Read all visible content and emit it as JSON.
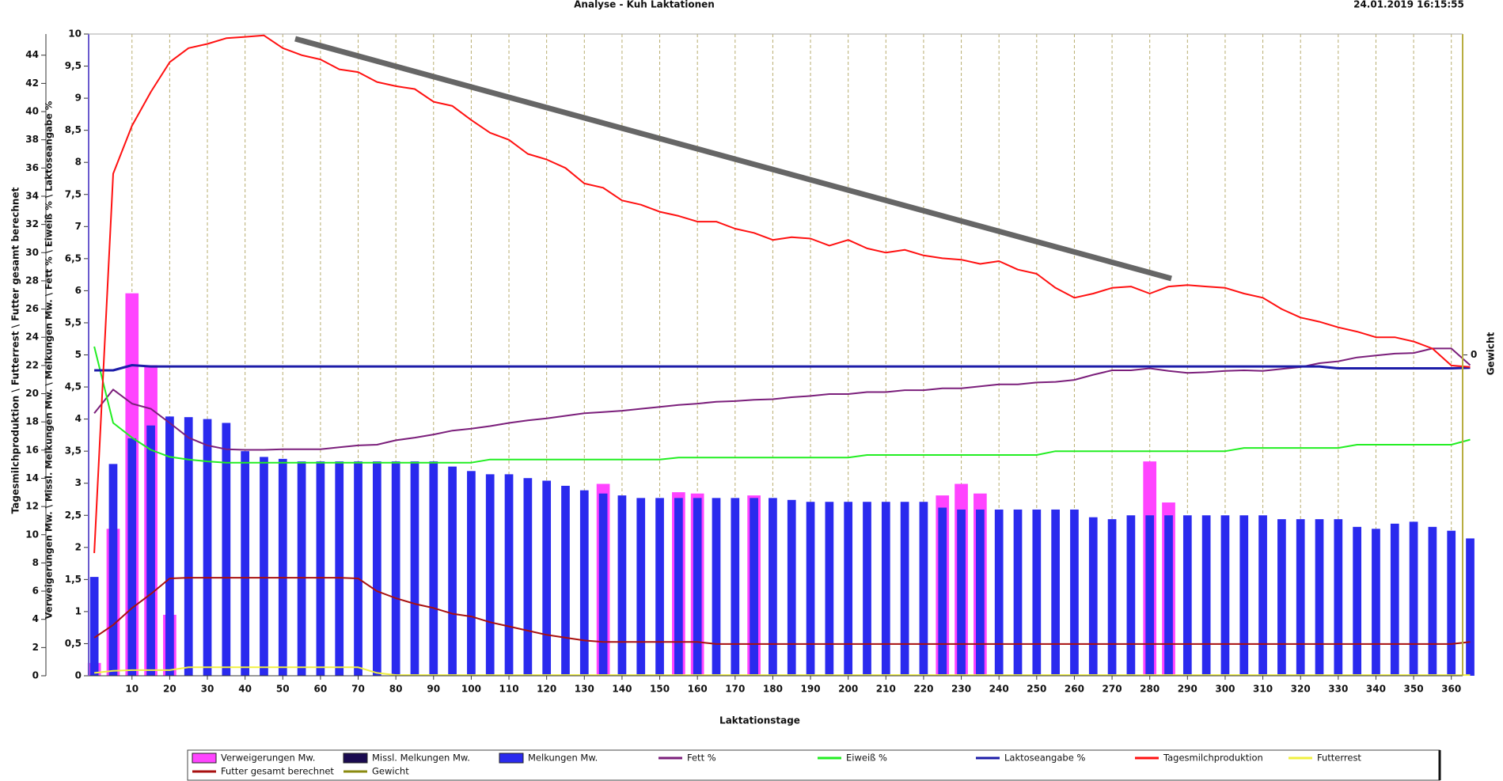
{
  "chart_data": {
    "type": "combo",
    "title": "Analyse - Kuh Laktationen",
    "timestamp": "24.01.2019 16:15:55",
    "xlabel": "Laktationstage",
    "ylabel": "Tagesmilchproduktion \\ Futterrest \\ Futter gesamt berechnet",
    "y2label": "Verweigerungen Mw. \\ Missl. Melkungen Mw. \\ Melkungen Mw. \\ Fett % \\ Eiweiß % \\ Laktoseangabe %",
    "y3label": "Gewicht",
    "xlim": [
      -1.5,
      363
    ],
    "xticks": [
      10,
      20,
      30,
      40,
      50,
      60,
      70,
      80,
      90,
      100,
      110,
      120,
      130,
      140,
      150,
      160,
      170,
      180,
      190,
      200,
      210,
      220,
      230,
      240,
      250,
      260,
      270,
      280,
      290,
      300,
      310,
      320,
      330,
      340,
      350,
      360
    ],
    "ylim": [
      0,
      45.5
    ],
    "yticks": [
      0,
      2,
      4,
      6,
      8,
      10,
      12,
      14,
      16,
      18,
      20,
      22,
      24,
      26,
      28,
      30,
      32,
      34,
      36,
      38,
      40,
      42,
      44
    ],
    "y2lim": [
      0,
      10
    ],
    "y2ticks": [
      0,
      {
        "value": 0.5,
        "label": "0,5"
      },
      1,
      {
        "value": 1.5,
        "label": "1,5"
      },
      2,
      {
        "value": 2.5,
        "label": "2,5"
      },
      3,
      {
        "value": 3.5,
        "label": "3,5"
      },
      4,
      {
        "value": 4.5,
        "label": "4,5"
      },
      5,
      {
        "value": 5.5,
        "label": "5,5"
      },
      6,
      {
        "value": 6.5,
        "label": "6,5"
      },
      7,
      {
        "value": 7.5,
        "label": "7,5"
      },
      8,
      {
        "value": 8.5,
        "label": "8,5"
      },
      9,
      {
        "value": 9.5,
        "label": "9,5"
      },
      10
    ],
    "y3lim": [
      -1,
      1
    ],
    "y3ticks": [
      0
    ],
    "grid": true,
    "x": [
      0,
      5,
      10,
      15,
      20,
      25,
      30,
      35,
      40,
      45,
      50,
      55,
      60,
      65,
      70,
      75,
      80,
      85,
      90,
      95,
      100,
      105,
      110,
      115,
      120,
      125,
      130,
      135,
      140,
      145,
      150,
      155,
      160,
      165,
      170,
      175,
      180,
      185,
      190,
      195,
      200,
      205,
      210,
      215,
      220,
      225,
      230,
      235,
      240,
      245,
      250,
      255,
      260,
      265,
      270,
      275,
      280,
      285,
      290,
      295,
      300,
      305,
      310,
      315,
      320,
      325,
      330,
      335,
      340,
      345,
      350,
      355,
      360,
      365
    ],
    "series": [
      {
        "name": "Verweigerungen Mw.",
        "kind": "bar",
        "axis": "y2",
        "color": "#ff44ff",
        "values": [
          0.2,
          2.29,
          5.96,
          4.84,
          0.95,
          0,
          0,
          0,
          0,
          0,
          0,
          0,
          0,
          0,
          0,
          0,
          0,
          0,
          0,
          0,
          0,
          0,
          0,
          0,
          0,
          0,
          0,
          2.99,
          0,
          0,
          0,
          2.86,
          2.84,
          0,
          0,
          2.81,
          0,
          0,
          0,
          0,
          0,
          0,
          0,
          0,
          0,
          2.81,
          2.99,
          2.84,
          0,
          0,
          0,
          0,
          0,
          0,
          0,
          0,
          3.34,
          2.7,
          0,
          0,
          0,
          0,
          0,
          0,
          0,
          0,
          0,
          0,
          0,
          0,
          0,
          0,
          0,
          0
        ]
      },
      {
        "name": "Missl. Melkungen Mw.",
        "kind": "bar",
        "axis": "y2",
        "color": "#1a0a50",
        "values": [
          0,
          0,
          0,
          0,
          0,
          0,
          0,
          0,
          0,
          0,
          0,
          0,
          0,
          0,
          0,
          0,
          0,
          0,
          0,
          0,
          0,
          0,
          0,
          0,
          0,
          0,
          0,
          0,
          0,
          0,
          0,
          0,
          0,
          0,
          0,
          0,
          0,
          0,
          0,
          0,
          0,
          0,
          0,
          0,
          0,
          0,
          0,
          0,
          0,
          0,
          0,
          0,
          0,
          0,
          0,
          0,
          0,
          0,
          0,
          0,
          0,
          0,
          0,
          0,
          0,
          0,
          0,
          0,
          0,
          0,
          0,
          0,
          0,
          0
        ]
      },
      {
        "name": "Melkungen Mw.",
        "kind": "bar",
        "axis": "y2",
        "color": "#2a2aee",
        "values": [
          1.54,
          3.3,
          3.7,
          3.9,
          4.04,
          4.03,
          4.0,
          3.94,
          3.5,
          3.41,
          3.38,
          3.34,
          3.34,
          3.34,
          3.34,
          3.34,
          3.34,
          3.34,
          3.34,
          3.26,
          3.19,
          3.14,
          3.14,
          3.08,
          3.04,
          2.96,
          2.89,
          2.84,
          2.81,
          2.77,
          2.77,
          2.77,
          2.77,
          2.77,
          2.77,
          2.77,
          2.77,
          2.74,
          2.71,
          2.71,
          2.71,
          2.71,
          2.71,
          2.71,
          2.71,
          2.62,
          2.59,
          2.59,
          2.59,
          2.59,
          2.59,
          2.59,
          2.59,
          2.47,
          2.44,
          2.5,
          2.5,
          2.5,
          2.5,
          2.5,
          2.5,
          2.5,
          2.5,
          2.44,
          2.44,
          2.44,
          2.44,
          2.32,
          2.29,
          2.37,
          2.4,
          2.32,
          2.26,
          2.14
        ]
      },
      {
        "name": "Fett %",
        "kind": "line",
        "axis": "y2",
        "color": "#7b1f7b",
        "values": [
          4.09,
          4.46,
          4.24,
          4.16,
          3.94,
          3.71,
          3.59,
          3.53,
          3.52,
          3.52,
          3.53,
          3.53,
          3.53,
          3.56,
          3.59,
          3.6,
          3.67,
          3.71,
          3.76,
          3.82,
          3.85,
          3.89,
          3.94,
          3.98,
          4.01,
          4.05,
          4.09,
          4.11,
          4.13,
          4.16,
          4.19,
          4.22,
          4.24,
          4.27,
          4.28,
          4.3,
          4.31,
          4.34,
          4.36,
          4.39,
          4.39,
          4.42,
          4.42,
          4.45,
          4.45,
          4.48,
          4.48,
          4.51,
          4.54,
          4.54,
          4.57,
          4.58,
          4.61,
          4.69,
          4.76,
          4.76,
          4.79,
          4.75,
          4.72,
          4.73,
          4.75,
          4.76,
          4.75,
          4.78,
          4.81,
          4.87,
          4.9,
          4.96,
          4.99,
          5.02,
          5.03,
          5.1,
          5.1,
          4.84
        ]
      },
      {
        "name": "Eiweiß %",
        "kind": "line",
        "axis": "y2",
        "color": "#22ee22",
        "values": [
          5.13,
          3.94,
          3.71,
          3.52,
          3.41,
          3.37,
          3.34,
          3.32,
          3.32,
          3.32,
          3.32,
          3.32,
          3.32,
          3.32,
          3.32,
          3.32,
          3.32,
          3.32,
          3.32,
          3.32,
          3.32,
          3.37,
          3.37,
          3.37,
          3.37,
          3.37,
          3.37,
          3.37,
          3.37,
          3.37,
          3.37,
          3.4,
          3.4,
          3.4,
          3.4,
          3.4,
          3.4,
          3.4,
          3.4,
          3.4,
          3.4,
          3.44,
          3.44,
          3.44,
          3.44,
          3.44,
          3.44,
          3.44,
          3.44,
          3.44,
          3.44,
          3.5,
          3.5,
          3.5,
          3.5,
          3.5,
          3.5,
          3.5,
          3.5,
          3.5,
          3.5,
          3.55,
          3.55,
          3.55,
          3.55,
          3.55,
          3.55,
          3.6,
          3.6,
          3.6,
          3.6,
          3.6,
          3.6,
          3.68
        ]
      },
      {
        "name": "Laktoseangabe %",
        "kind": "line",
        "axis": "y2",
        "color": "#1c1ca8",
        "values": [
          4.76,
          4.76,
          4.84,
          4.82,
          4.82,
          4.82,
          4.82,
          4.82,
          4.82,
          4.82,
          4.82,
          4.82,
          4.82,
          4.82,
          4.82,
          4.82,
          4.82,
          4.82,
          4.82,
          4.82,
          4.82,
          4.82,
          4.82,
          4.82,
          4.82,
          4.82,
          4.82,
          4.82,
          4.82,
          4.82,
          4.82,
          4.82,
          4.82,
          4.82,
          4.82,
          4.82,
          4.82,
          4.82,
          4.82,
          4.82,
          4.82,
          4.82,
          4.82,
          4.82,
          4.82,
          4.82,
          4.82,
          4.82,
          4.82,
          4.82,
          4.82,
          4.82,
          4.82,
          4.82,
          4.82,
          4.82,
          4.82,
          4.82,
          4.82,
          4.82,
          4.82,
          4.82,
          4.82,
          4.82,
          4.82,
          4.82,
          4.79,
          4.79,
          4.79,
          4.79,
          4.79,
          4.79,
          4.79,
          4.8
        ]
      },
      {
        "name": "Tagesmilchproduktion",
        "kind": "line",
        "axis": "y",
        "color": "#ff1010",
        "values": [
          8.7,
          35.6,
          39,
          41.4,
          43.5,
          44.5,
          44.8,
          45.2,
          45.3,
          45.4,
          44.5,
          44,
          43.7,
          43,
          42.8,
          42.1,
          41.8,
          41.6,
          40.7,
          40.4,
          39.4,
          38.5,
          38,
          37,
          36.6,
          36,
          34.9,
          34.6,
          33.7,
          33.4,
          32.9,
          32.6,
          32.2,
          32.2,
          31.7,
          31.4,
          30.9,
          31.1,
          31,
          30.5,
          30.9,
          30.3,
          30,
          30.2,
          29.8,
          29.6,
          29.5,
          29.2,
          29.4,
          28.8,
          28.5,
          27.5,
          26.8,
          27.1,
          27.5,
          27.6,
          27.1,
          27.6,
          27.7,
          27.6,
          27.5,
          27.1,
          26.8,
          26,
          25.4,
          25.1,
          24.7,
          24.4,
          24,
          24,
          23.7,
          23.2,
          22,
          21.9
        ]
      },
      {
        "name": "Futterrest",
        "kind": "line",
        "axis": "y",
        "color": "#f0f040",
        "values": [
          0.2,
          0.35,
          0.4,
          0.4,
          0.4,
          0.6,
          0.6,
          0.6,
          0.6,
          0.6,
          0.6,
          0.6,
          0.6,
          0.6,
          0.6,
          0.2,
          0.05,
          0.05,
          0.05,
          0.05,
          0.05,
          0.05,
          0.05,
          0.05,
          0.05,
          0.05,
          0.05,
          0.05,
          0.05,
          0.05,
          0.05,
          0.05,
          0.05,
          0.05,
          0.05,
          0.05,
          0.05,
          0.05,
          0.05,
          0.05,
          0.05,
          0.05,
          0.05,
          0.05,
          0.05,
          0.05,
          0.05,
          0.05,
          0.05,
          0.05,
          0.05,
          0.05,
          0.05,
          0.05,
          0.05,
          0.05,
          0.05,
          0.05,
          0.05,
          0.05,
          0.05,
          0.05,
          0.05,
          0.05,
          0.05,
          0.05,
          0.05,
          0.05,
          0.05,
          0.05,
          0.05,
          0.05,
          0.05,
          0.05
        ]
      },
      {
        "name": "Futter gesamt berechnet",
        "kind": "line",
        "axis": "y",
        "color": "#a81010",
        "values": [
          2.7,
          3.6,
          4.8,
          5.8,
          6.9,
          6.95,
          6.95,
          6.95,
          6.95,
          6.95,
          6.95,
          6.95,
          6.95,
          6.95,
          6.9,
          6,
          5.5,
          5.1,
          4.8,
          4.4,
          4.2,
          3.8,
          3.5,
          3.2,
          2.9,
          2.7,
          2.5,
          2.4,
          2.4,
          2.4,
          2.4,
          2.4,
          2.4,
          2.25,
          2.25,
          2.25,
          2.25,
          2.25,
          2.25,
          2.25,
          2.25,
          2.25,
          2.25,
          2.25,
          2.25,
          2.25,
          2.25,
          2.25,
          2.25,
          2.25,
          2.25,
          2.25,
          2.25,
          2.25,
          2.25,
          2.25,
          2.25,
          2.25,
          2.25,
          2.25,
          2.25,
          2.25,
          2.25,
          2.25,
          2.25,
          2.25,
          2.25,
          2.25,
          2.25,
          2.25,
          2.25,
          2.25,
          2.25,
          2.4
        ]
      },
      {
        "name": "Gewicht",
        "kind": "line",
        "axis": "y3",
        "color": "#8a8a10",
        "values": [
          null,
          null,
          null,
          null,
          null,
          null,
          null,
          null,
          null,
          null,
          null,
          null,
          null,
          null,
          null,
          null,
          null,
          null,
          null,
          null,
          null,
          null,
          null,
          null,
          null,
          null,
          null,
          null,
          null,
          null,
          null,
          null,
          null,
          null,
          null,
          null,
          null,
          null,
          null,
          null,
          null,
          null,
          null,
          null,
          null,
          null,
          null,
          null,
          null,
          null,
          null,
          null,
          null,
          null,
          null,
          null,
          null,
          null,
          null,
          null,
          null,
          null,
          null,
          null,
          null,
          null,
          null,
          null,
          null,
          null,
          null,
          null,
          null,
          null
        ]
      }
    ]
  }
}
